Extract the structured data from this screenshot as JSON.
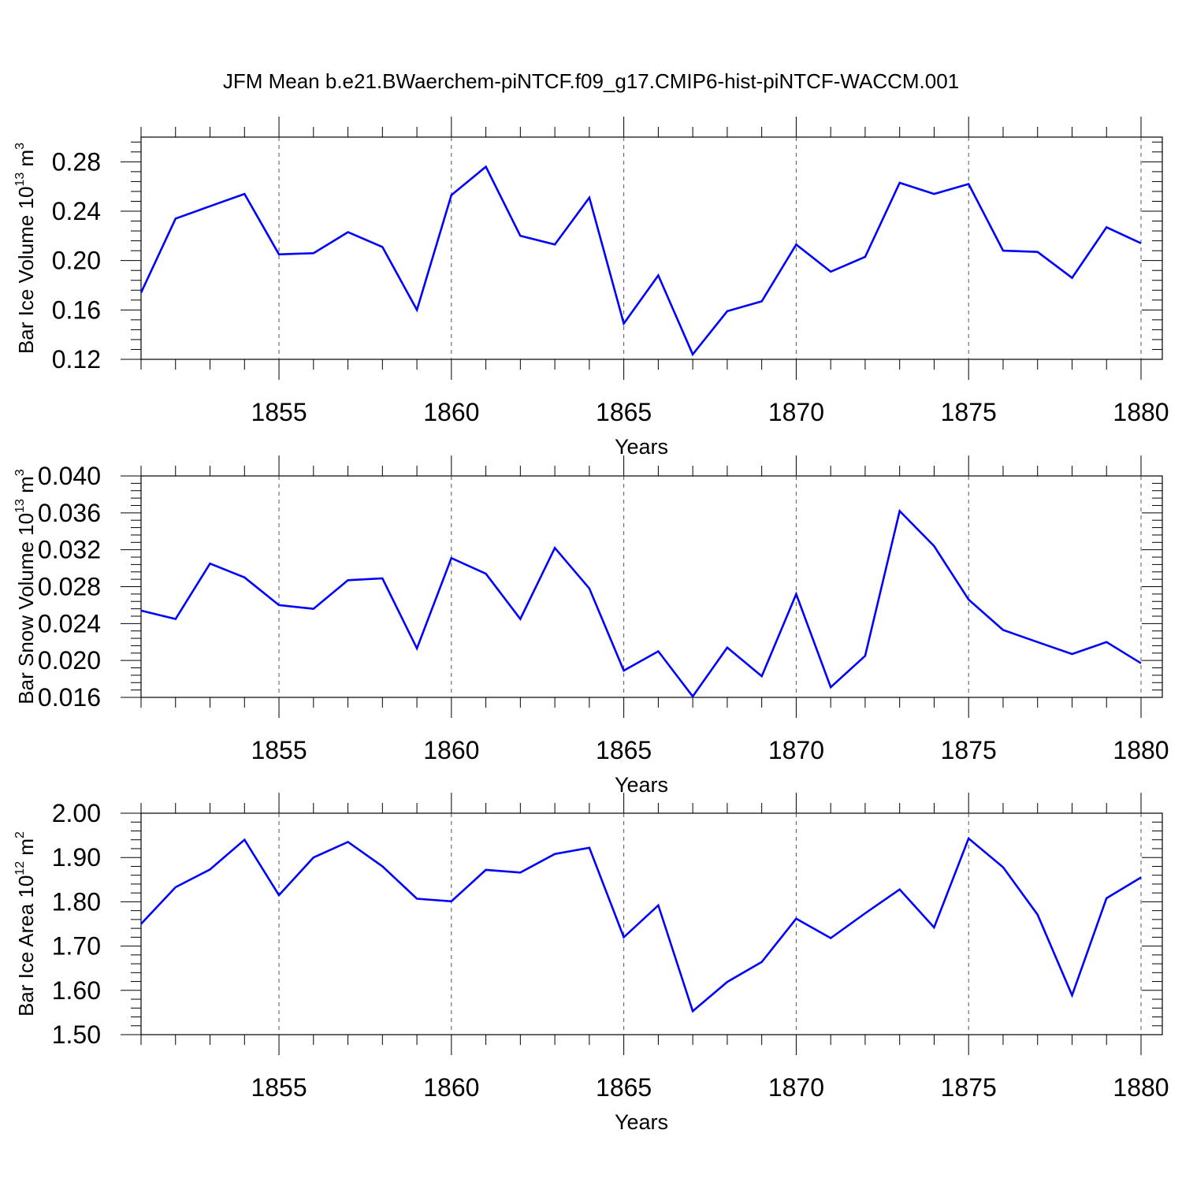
{
  "title": "JFM Mean b.e21.BWaerchem-piNTCF.f09_g17.CMIP6-hist-piNTCF-WACCM.001",
  "line_color": "#0000ff",
  "chart_data": [
    {
      "type": "line",
      "xlabel": "Years",
      "ylabel": {
        "text": "Bar Ice Volume 10",
        "exp": "13",
        "unit": " m",
        "unit_exp": "3"
      },
      "xlim": [
        1851,
        1880
      ],
      "ylim": [
        0.12,
        0.3
      ],
      "xticks": [
        1855,
        1860,
        1865,
        1870,
        1875,
        1880
      ],
      "yticks": [
        "0.12",
        "0.16",
        "0.20",
        "0.24",
        "0.28"
      ],
      "x": [
        1851,
        1852,
        1853,
        1854,
        1855,
        1856,
        1857,
        1858,
        1859,
        1860,
        1861,
        1862,
        1863,
        1864,
        1865,
        1866,
        1867,
        1868,
        1869,
        1870,
        1871,
        1872,
        1873,
        1874,
        1875,
        1876,
        1877,
        1878,
        1879,
        1880
      ],
      "y": [
        0.174,
        0.234,
        0.244,
        0.254,
        0.205,
        0.206,
        0.223,
        0.211,
        0.16,
        0.253,
        0.276,
        0.22,
        0.213,
        0.251,
        0.149,
        0.188,
        0.124,
        0.159,
        0.167,
        0.213,
        0.191,
        0.203,
        0.263,
        0.254,
        0.262,
        0.208,
        0.207,
        0.186,
        0.227,
        0.214
      ]
    },
    {
      "type": "line",
      "xlabel": "Years",
      "ylabel": {
        "text": "Bar Snow Volume 10",
        "exp": "13",
        "unit": " m",
        "unit_exp": "3"
      },
      "xlim": [
        1851,
        1880
      ],
      "ylim": [
        0.016,
        0.04
      ],
      "xticks": [
        1855,
        1860,
        1865,
        1870,
        1875,
        1880
      ],
      "yticks": [
        "0.016",
        "0.020",
        "0.024",
        "0.028",
        "0.032",
        "0.036",
        "0.040"
      ],
      "x": [
        1851,
        1852,
        1853,
        1854,
        1855,
        1856,
        1857,
        1858,
        1859,
        1860,
        1861,
        1862,
        1863,
        1864,
        1865,
        1866,
        1867,
        1868,
        1869,
        1870,
        1871,
        1872,
        1873,
        1874,
        1875,
        1876,
        1877,
        1878,
        1879,
        1880
      ],
      "y": [
        0.0254,
        0.0245,
        0.0305,
        0.029,
        0.026,
        0.0256,
        0.0287,
        0.0289,
        0.0213,
        0.0311,
        0.0294,
        0.0245,
        0.0322,
        0.0278,
        0.0189,
        0.021,
        0.0161,
        0.0214,
        0.0183,
        0.0272,
        0.0171,
        0.0205,
        0.0362,
        0.0324,
        0.0266,
        0.0233,
        0.022,
        0.0207,
        0.022,
        0.0197
      ]
    },
    {
      "type": "line",
      "xlabel": "Years",
      "ylabel": {
        "text": "Bar Ice Area 10",
        "exp": "12",
        "unit": " m",
        "unit_exp": "2"
      },
      "xlim": [
        1851,
        1880
      ],
      "ylim": [
        1.5,
        2.0
      ],
      "xticks": [
        1855,
        1860,
        1865,
        1870,
        1875,
        1880
      ],
      "yticks": [
        "1.50",
        "1.60",
        "1.70",
        "1.80",
        "1.90",
        "2.00"
      ],
      "x": [
        1851,
        1852,
        1853,
        1854,
        1855,
        1856,
        1857,
        1858,
        1859,
        1860,
        1861,
        1862,
        1863,
        1864,
        1865,
        1866,
        1867,
        1868,
        1869,
        1870,
        1871,
        1872,
        1873,
        1874,
        1875,
        1876,
        1877,
        1878,
        1879,
        1880
      ],
      "y": [
        1.75,
        1.833,
        1.873,
        1.94,
        1.815,
        1.9,
        1.935,
        1.88,
        1.807,
        1.801,
        1.872,
        1.866,
        1.908,
        1.922,
        1.72,
        1.792,
        1.553,
        1.619,
        1.664,
        1.762,
        1.718,
        1.774,
        1.828,
        1.742,
        1.943,
        1.878,
        1.771,
        1.589,
        1.808,
        1.855
      ]
    }
  ]
}
